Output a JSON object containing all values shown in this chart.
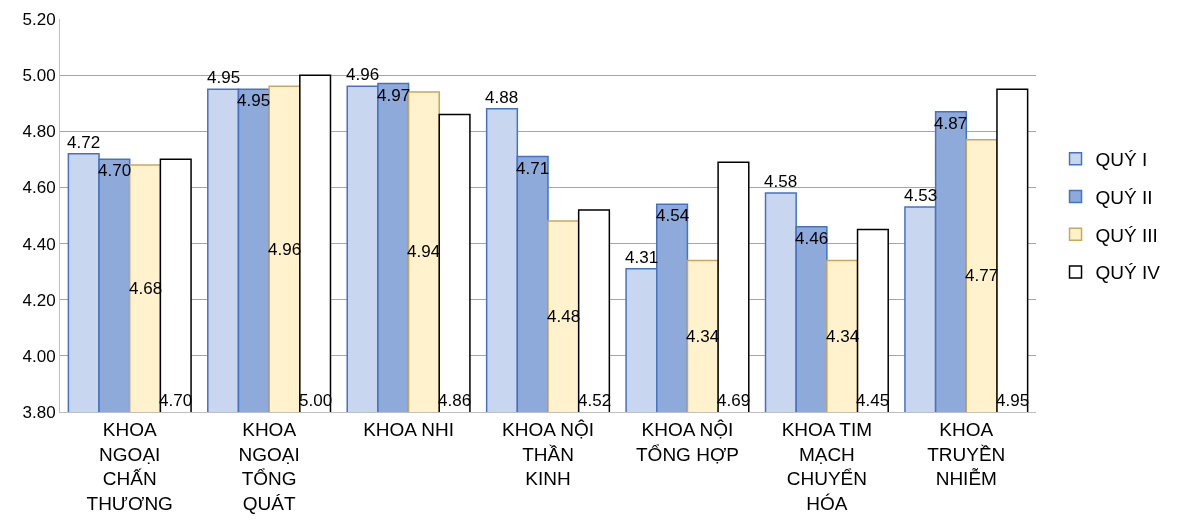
{
  "chart_data": {
    "type": "bar",
    "categories": [
      "KHOA NGOẠI CHẤN THƯƠNG",
      "KHOA NGOẠI TỔNG QUÁT",
      "KHOA NHI",
      "KHOA NỘI THẦN KINH",
      "KHOA NỘI TỔNG HỢP",
      "KHOA TIM MẠCH CHUYỂN HÓA",
      "KHOA TRUYỀN NHIỄM"
    ],
    "series": [
      {
        "name": "QUÝ I",
        "color": "#c9d6ef",
        "values": [
          4.72,
          4.95,
          4.96,
          4.88,
          4.31,
          4.58,
          4.53
        ],
        "value_labels": [
          "4.72",
          "4.95",
          "4.96",
          "4.88",
          "4.31",
          "4.58",
          "4.53"
        ]
      },
      {
        "name": "QUÝ II",
        "color": "#8eaadb",
        "values": [
          4.7,
          4.95,
          4.97,
          4.71,
          4.54,
          4.46,
          4.87
        ],
        "value_labels": [
          "4.70",
          "4.95",
          "4.97",
          "4.71",
          "4.54",
          "4.46",
          "4.87"
        ]
      },
      {
        "name": "QUÝ III",
        "color": "#fff2cc",
        "values": [
          4.68,
          4.96,
          4.94,
          4.48,
          4.34,
          4.34,
          4.77
        ],
        "value_labels": [
          "4.68",
          "4.96",
          "4.94",
          "4.48",
          "4.34",
          "4.34",
          "4.77"
        ]
      },
      {
        "name": "QUÝ IV",
        "color": "#ffffff",
        "values": [
          4.7,
          5.0,
          4.86,
          4.52,
          4.69,
          4.45,
          4.95
        ],
        "value_labels": [
          "4.70",
          "5.00",
          "4.86",
          "4.52",
          "4.69",
          "4.45",
          "4.95"
        ]
      }
    ],
    "ylim": [
      3.8,
      5.2
    ],
    "yticks": [
      {
        "value": 3.8,
        "label": "3.80"
      },
      {
        "value": 4.0,
        "label": "4.00"
      },
      {
        "value": 4.2,
        "label": "4.20"
      },
      {
        "value": 4.4,
        "label": "4.40"
      },
      {
        "value": 4.6,
        "label": "4.60"
      },
      {
        "value": 4.8,
        "label": "4.80"
      },
      {
        "value": 5.0,
        "label": "5.00"
      },
      {
        "value": 5.2,
        "label": "5.20"
      }
    ],
    "grid": "y",
    "legend": "right"
  }
}
